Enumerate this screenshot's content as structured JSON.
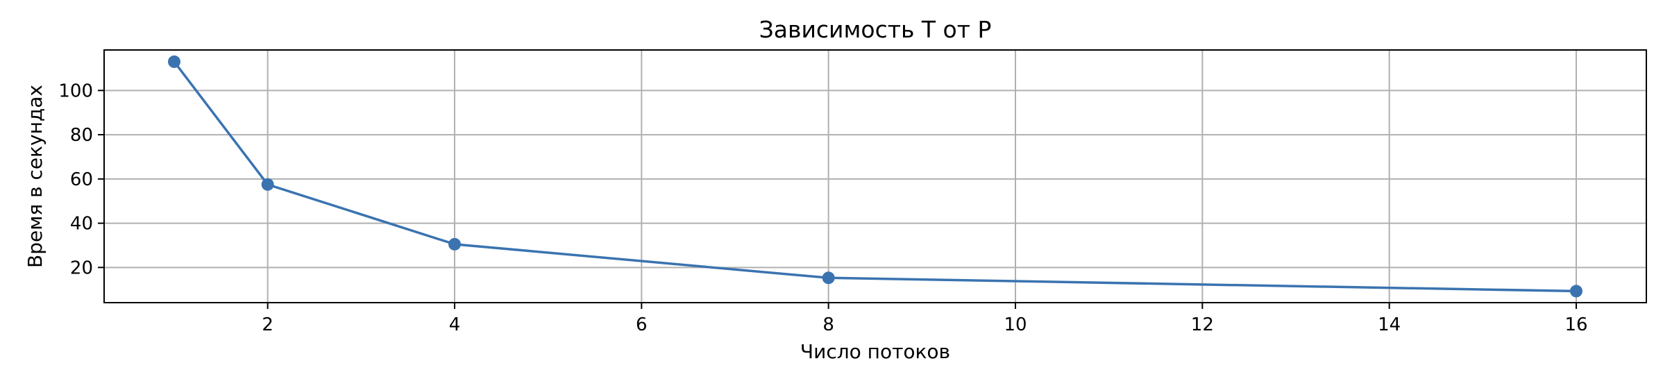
{
  "chart_data": {
    "type": "line",
    "title": "Зависимость T от P",
    "xlabel": "Число потоков",
    "ylabel": "Время в секундах",
    "x": [
      1,
      2,
      4,
      8,
      16
    ],
    "series": [
      {
        "values": [
          113,
          57.5,
          30.5,
          15.3,
          9.3
        ]
      }
    ],
    "xlim": [
      0.25,
      16.75
    ],
    "ylim": [
      4.1,
      118.3
    ],
    "xticks": [
      2,
      4,
      6,
      8,
      10,
      12,
      14,
      16
    ],
    "yticks": [
      20,
      40,
      60,
      80,
      100
    ],
    "grid": true,
    "marker": "circle",
    "line_color": "#3a73b0",
    "grid_color": "#b0b0b0"
  }
}
